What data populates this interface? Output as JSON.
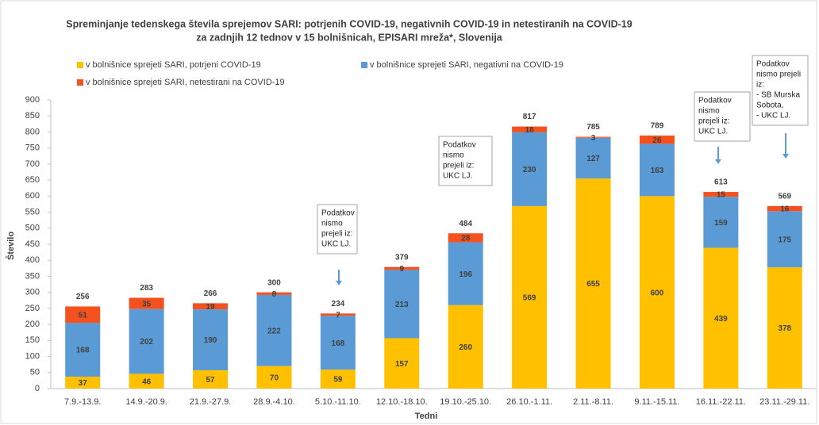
{
  "chart_data": {
    "type": "stacked_bar",
    "title": [
      "Spreminjanje tedenskega števila sprejemov SARI: potrjenih COVID-19, negativnih COVID-19 in netestiranih na COVID-19",
      "za zadnjih 12 tednov v 15 bolnišnicah, EPISARI mreža*, Slovenija"
    ],
    "x_label": "Tedni",
    "y_label": "Število",
    "categories": [
      "7.9.-13.9.",
      "14.9.-20.9.",
      "21.9.-27.9.",
      "28.9.-4.10.",
      "5.10.-11.10.",
      "12.10.-18.10.",
      "19.10.-25.10.",
      "26.10.-1.11.",
      "2.11.-8.11.",
      "9.11.-15.11.",
      "16.11.-22.11.",
      "23.11.-29.11."
    ],
    "series": [
      {
        "name": "v bolnišnice sprejeti SARI, potrjeni COVID-19",
        "color": "#FFC000",
        "values": [
          37,
          46,
          57,
          70,
          59,
          157,
          260,
          569,
          655,
          600,
          439,
          378
        ]
      },
      {
        "name": "v bolnišnice sprejeti SARI, negativni na COVID-19",
        "color": "#5B9BD5",
        "values": [
          168,
          202,
          190,
          222,
          168,
          213,
          196,
          230,
          127,
          163,
          159,
          175
        ]
      },
      {
        "name": "v bolnišnice sprejeti SARI, netestirani na COVID-19",
        "color": "#F4511E",
        "values": [
          51,
          35,
          19,
          8,
          7,
          9,
          28,
          18,
          3,
          26,
          15,
          16
        ]
      }
    ],
    "totals": [
      256,
      283,
      266,
      300,
      234,
      379,
      484,
      817,
      785,
      789,
      613,
      569
    ],
    "ylim": [
      0,
      900
    ],
    "yticks": [
      0,
      50,
      100,
      150,
      200,
      250,
      300,
      350,
      400,
      450,
      500,
      550,
      600,
      650,
      700,
      750,
      800,
      850,
      900
    ],
    "grid": false,
    "annotations": [
      {
        "lines": [
          "Podatkov",
          "nismo",
          "prejeli iz:",
          "UKC LJ."
        ]
      },
      {
        "lines": [
          "Podatkov",
          "nismo",
          "prejeli iz:",
          "UKC LJ."
        ]
      },
      {
        "lines": [
          "Podatkov",
          "nismo",
          "prejeli iz:",
          "UKC LJ."
        ]
      },
      {
        "lines": [
          "Podatkov",
          "nismo prejeli",
          "iz:",
          "- SB Murska",
          "Sobota,",
          "- UKC LJ."
        ]
      }
    ]
  }
}
